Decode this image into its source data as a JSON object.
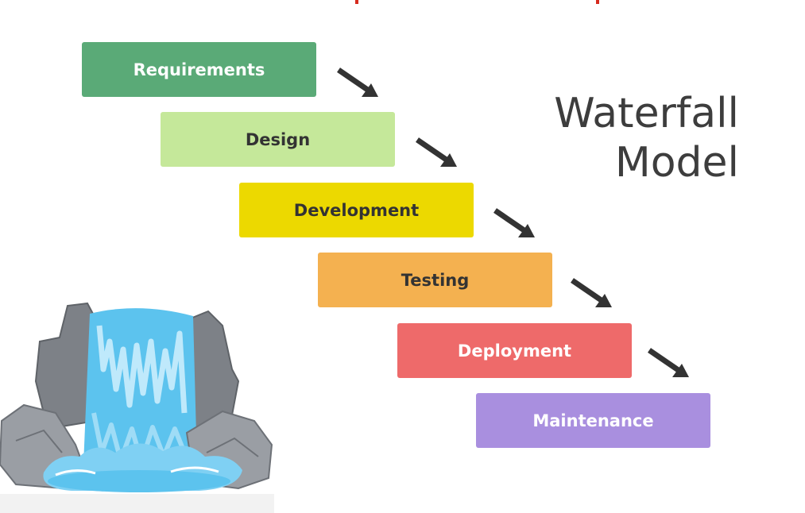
{
  "title": {
    "line1": "Waterfall",
    "line2": "Model"
  },
  "steps": [
    {
      "label": "Requirements",
      "bg": "#5aaa77",
      "fg": "#ffffff"
    },
    {
      "label": "Design",
      "bg": "#c5e89a",
      "fg": "#333333"
    },
    {
      "label": "Development",
      "bg": "#ecd900",
      "fg": "#333333"
    },
    {
      "label": "Testing",
      "bg": "#f4b150",
      "fg": "#333333"
    },
    {
      "label": "Deployment",
      "bg": "#ee6a6a",
      "fg": "#ffffff"
    },
    {
      "label": "Maintenance",
      "bg": "#a98fdf",
      "fg": "#ffffff"
    }
  ],
  "arrow_icon": "arrow-down-right-icon",
  "illustration": "waterfall-illustration",
  "colors": {
    "title_text": "#3d3d3d",
    "arrow": "#333333",
    "water": "#5cc3ee",
    "rock": "#8b8f95",
    "top_strip": "#d62b1e"
  }
}
